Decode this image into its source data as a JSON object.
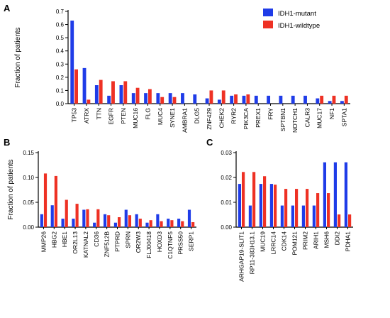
{
  "colors": {
    "mutant": "#1f3ce8",
    "wildtype": "#ee3124"
  },
  "legend": [
    {
      "key": "mutant",
      "label": "IDH1-mutant"
    },
    {
      "key": "wildtype",
      "label": "IDH1-wildtype"
    }
  ],
  "chart_data": [
    {
      "panel": "A",
      "type": "bar",
      "ylabel": "Fraction of patients",
      "ylim": [
        0,
        0.7
      ],
      "yticks": [
        "0.0",
        "0.1",
        "0.2",
        "0.3",
        "0.4",
        "0.5",
        "0.6",
        "0.7"
      ],
      "categories": [
        "TP53",
        "ATRX",
        "TTN",
        "EGFR",
        "PTEN",
        "MUC16",
        "FLG",
        "MUC4",
        "SYNE1",
        "AMBRA1",
        "DLG5",
        "ZNF429",
        "CHEK2",
        "RYR2",
        "PIK3CA",
        "PREX1",
        "FRY",
        "SPTBN1",
        "NOTCH1",
        "CALR3",
        "MUC17",
        "NF1",
        "SPTA1"
      ],
      "series": [
        {
          "name": "IDH1-mutant",
          "key": "mutant",
          "values": [
            0.63,
            0.27,
            0.14,
            0.06,
            0.14,
            0.08,
            0.08,
            0.08,
            0.08,
            0.08,
            0.07,
            0.04,
            0.03,
            0.06,
            0.06,
            0.06,
            0.06,
            0.06,
            0.06,
            0.06,
            0.04,
            0.02,
            0.02
          ]
        },
        {
          "name": "IDH1-wildtype",
          "key": "wildtype",
          "values": [
            0.26,
            0.03,
            0.18,
            0.17,
            0.17,
            0.12,
            0.11,
            0.05,
            0.05,
            0.0,
            0.0,
            0.1,
            0.1,
            0.07,
            0.07,
            0.0,
            0.0,
            0.0,
            0.0,
            0.0,
            0.06,
            0.06,
            0.06
          ]
        }
      ]
    },
    {
      "panel": "B",
      "type": "bar",
      "ylabel": "Fraction of patients",
      "ylim": [
        0,
        0.15
      ],
      "yticks": [
        "0.00",
        "0.05",
        "0.10",
        "0.15"
      ],
      "categories": [
        "MMP26",
        "HBG2",
        "HBE1",
        "OR2L13",
        "KATNAL2",
        "CD36",
        "ZNF512B",
        "PTPRD",
        "SPRN",
        "OR2W3",
        "FLJ00418",
        "HOXD3",
        "C1QTNF5",
        "PRSS50",
        "SERP1"
      ],
      "series": [
        {
          "name": "IDH1-mutant",
          "key": "mutant",
          "values": [
            0.026,
            0.044,
            0.017,
            0.017,
            0.035,
            0.009,
            0.026,
            0.009,
            0.035,
            0.026,
            0.009,
            0.026,
            0.017,
            0.017,
            0.035
          ]
        },
        {
          "name": "IDH1-wildtype",
          "key": "wildtype",
          "values": [
            0.108,
            0.103,
            0.055,
            0.047,
            0.036,
            0.036,
            0.024,
            0.02,
            0.024,
            0.017,
            0.014,
            0.012,
            0.014,
            0.012,
            0.01
          ]
        }
      ]
    },
    {
      "panel": "C",
      "type": "bar",
      "ylabel": "",
      "ylim": [
        0,
        0.03
      ],
      "yticks": [
        "0.00",
        "0.01",
        "0.02",
        "0.03"
      ],
      "categories": [
        "ARHGAP19-SLIT1",
        "RP11-383H13.1",
        "MUC19",
        "LRRC14",
        "CDK14",
        "POM121",
        "PRIM2",
        "ARIH1",
        "MSH6",
        "DDI2",
        "PDHA1"
      ],
      "series": [
        {
          "name": "IDH1-mutant",
          "key": "mutant",
          "values": [
            0.0174,
            0.0087,
            0.0174,
            0.0174,
            0.0087,
            0.0087,
            0.0087,
            0.0087,
            0.0261,
            0.0261,
            0.0261
          ]
        },
        {
          "name": "IDH1-wildtype",
          "key": "wildtype",
          "values": [
            0.0222,
            0.0222,
            0.0205,
            0.0171,
            0.0154,
            0.0154,
            0.0154,
            0.0137,
            0.0137,
            0.0051,
            0.0051
          ]
        }
      ]
    }
  ]
}
